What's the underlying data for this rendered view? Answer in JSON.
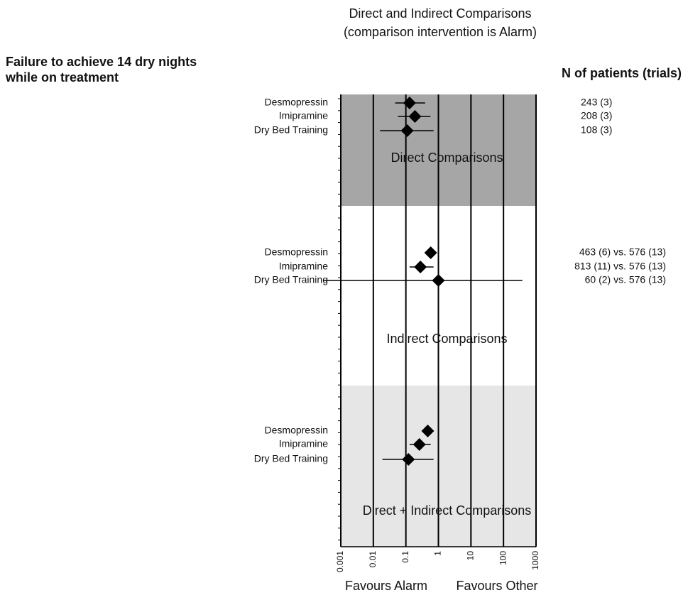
{
  "chart_data": {
    "type": "forest",
    "title": "Direct and Indirect Comparisons",
    "subtitle": "(comparison intervention is Alarm)",
    "row_heading": "Failure to achieve 14 dry nights while on treatment",
    "n_heading": "N of patients (trials)",
    "log_x": true,
    "xlim": [
      0.001,
      1000
    ],
    "xticks": [
      0.001,
      0.01,
      0.1,
      1,
      10,
      100,
      1000
    ],
    "x_label_left": "Favours Alarm",
    "x_label_right": "Favours Other",
    "grid": true,
    "groups": [
      {
        "name": "Direct Comparisons",
        "color": "#a6a6a6",
        "rows": [
          {
            "label": "Desmopressin",
            "value": 0.13,
            "ci": [
              0.047,
              0.39
            ],
            "n": "243 (3)"
          },
          {
            "label": "Imipramine",
            "value": 0.19,
            "ci": [
              0.057,
              0.57
            ],
            "n": "208 (3)"
          },
          {
            "label": "Dry Bed Training",
            "value": 0.11,
            "ci": [
              0.016,
              0.71
            ],
            "n": "108 (3)"
          }
        ]
      },
      {
        "name": "Indirect Comparisons",
        "color": "#ffffff",
        "rows": [
          {
            "label": "Desmopressin",
            "value": 0.58,
            "ci": null,
            "n": "463 (6) vs. 576 (13)"
          },
          {
            "label": "Imipramine",
            "value": 0.28,
            "ci": [
              0.13,
              0.71
            ],
            "n": "813 (11) vs. 576 (13)"
          },
          {
            "label": "Dry Bed Training",
            "value": 1.0,
            "ci": [
              0.0003,
              380
            ],
            "n": "60 (2) vs. 576 (13)"
          }
        ]
      },
      {
        "name": "Direct + Indirect Comparisons",
        "color": "#e6e6e6",
        "rows": [
          {
            "label": "Desmopressin",
            "value": 0.47,
            "ci": null
          },
          {
            "label": "Imipramine",
            "value": 0.26,
            "ci": [
              0.13,
              0.58
            ]
          },
          {
            "label": "Dry Bed Training",
            "value": 0.12,
            "ci": [
              0.019,
              0.71
            ]
          }
        ]
      }
    ]
  }
}
